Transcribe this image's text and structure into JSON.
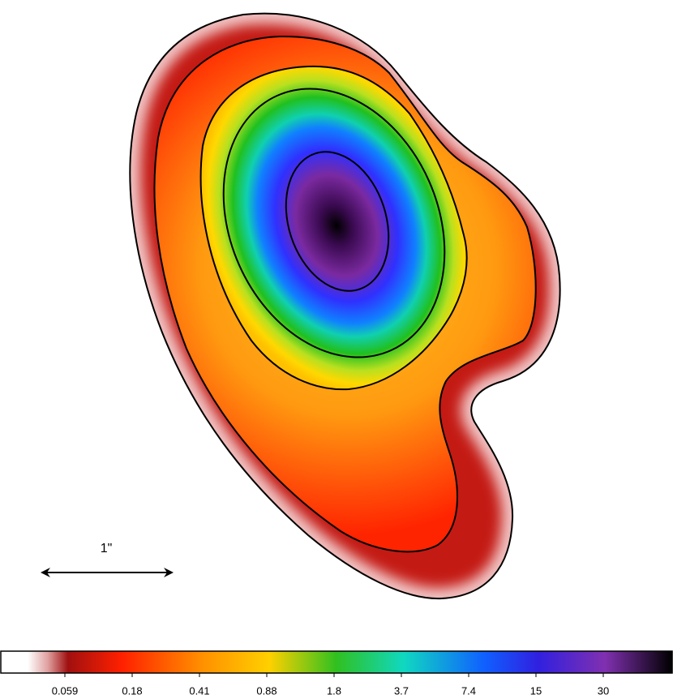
{
  "chart_data": {
    "type": "contour",
    "scale_bar_label": "1\"",
    "colorbar_ticks": [
      0.059,
      0.18,
      0.41,
      0.88,
      1.8,
      3.7,
      7.4,
      15,
      30
    ]
  }
}
